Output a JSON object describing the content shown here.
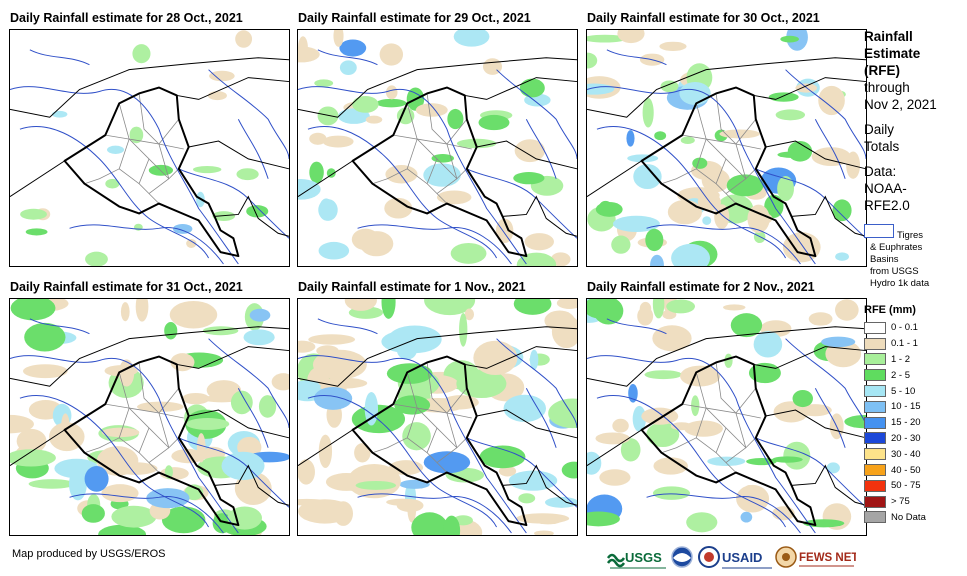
{
  "panels": [
    {
      "title": "Daily Rainfall estimate for 28 Oct., 2021",
      "density": 0.05,
      "seed": 11
    },
    {
      "title": "Daily Rainfall estimate for 29 Oct., 2021",
      "density": 0.3,
      "seed": 23
    },
    {
      "title": "Daily Rainfall estimate for 30 Oct., 2021",
      "density": 0.45,
      "seed": 37
    },
    {
      "title": "Daily Rainfall estimate for 31 Oct., 2021",
      "density": 0.55,
      "seed": 41
    },
    {
      "title": "Daily Rainfall estimate for 1 Nov., 2021",
      "density": 0.6,
      "seed": 53
    },
    {
      "title": "Daily Rainfall estimate for 2 Nov., 2021",
      "density": 0.4,
      "seed": 67
    }
  ],
  "legend": {
    "title_lines": [
      "Rainfall",
      "Estimate",
      "(RFE)"
    ],
    "through": "through",
    "date": "Nov 2, 2021",
    "daily": "Daily",
    "totals": "Totals",
    "data_label": "Data:",
    "data_source_1": "NOAA-",
    "data_source_2": "RFE2.0",
    "basin_label": "Tigres",
    "basin_lines": [
      "& Euphrates",
      "Basins",
      "from USGS",
      "Hydro 1k data"
    ],
    "rfe_title": "RFE (mm)",
    "classes": [
      {
        "label": "0 - 0.1",
        "color": "#ffffff"
      },
      {
        "label": "0.1 - 1",
        "color": "#eedcbc"
      },
      {
        "label": "1 - 2",
        "color": "#a8ef9a"
      },
      {
        "label": "2 - 5",
        "color": "#5fdc5f"
      },
      {
        "label": "5 - 10",
        "color": "#a6e6f4"
      },
      {
        "label": "10 - 15",
        "color": "#7ec0f4"
      },
      {
        "label": "15 - 20",
        "color": "#4592f0"
      },
      {
        "label": "20 - 30",
        "color": "#1c48d8"
      },
      {
        "label": "30 - 40",
        "color": "#fde38a"
      },
      {
        "label": "40 - 50",
        "color": "#f7a21a"
      },
      {
        "label": "50 - 75",
        "color": "#f2320e"
      },
      {
        "label": "> 75",
        "color": "#a11515"
      },
      {
        "label": "No Data",
        "color": "#a5a5a5"
      }
    ]
  },
  "credit": "Map produced by USGS/EROS",
  "logos": {
    "usgs": "USGS",
    "usaid": "USAID",
    "fews": "FEWS NET"
  }
}
